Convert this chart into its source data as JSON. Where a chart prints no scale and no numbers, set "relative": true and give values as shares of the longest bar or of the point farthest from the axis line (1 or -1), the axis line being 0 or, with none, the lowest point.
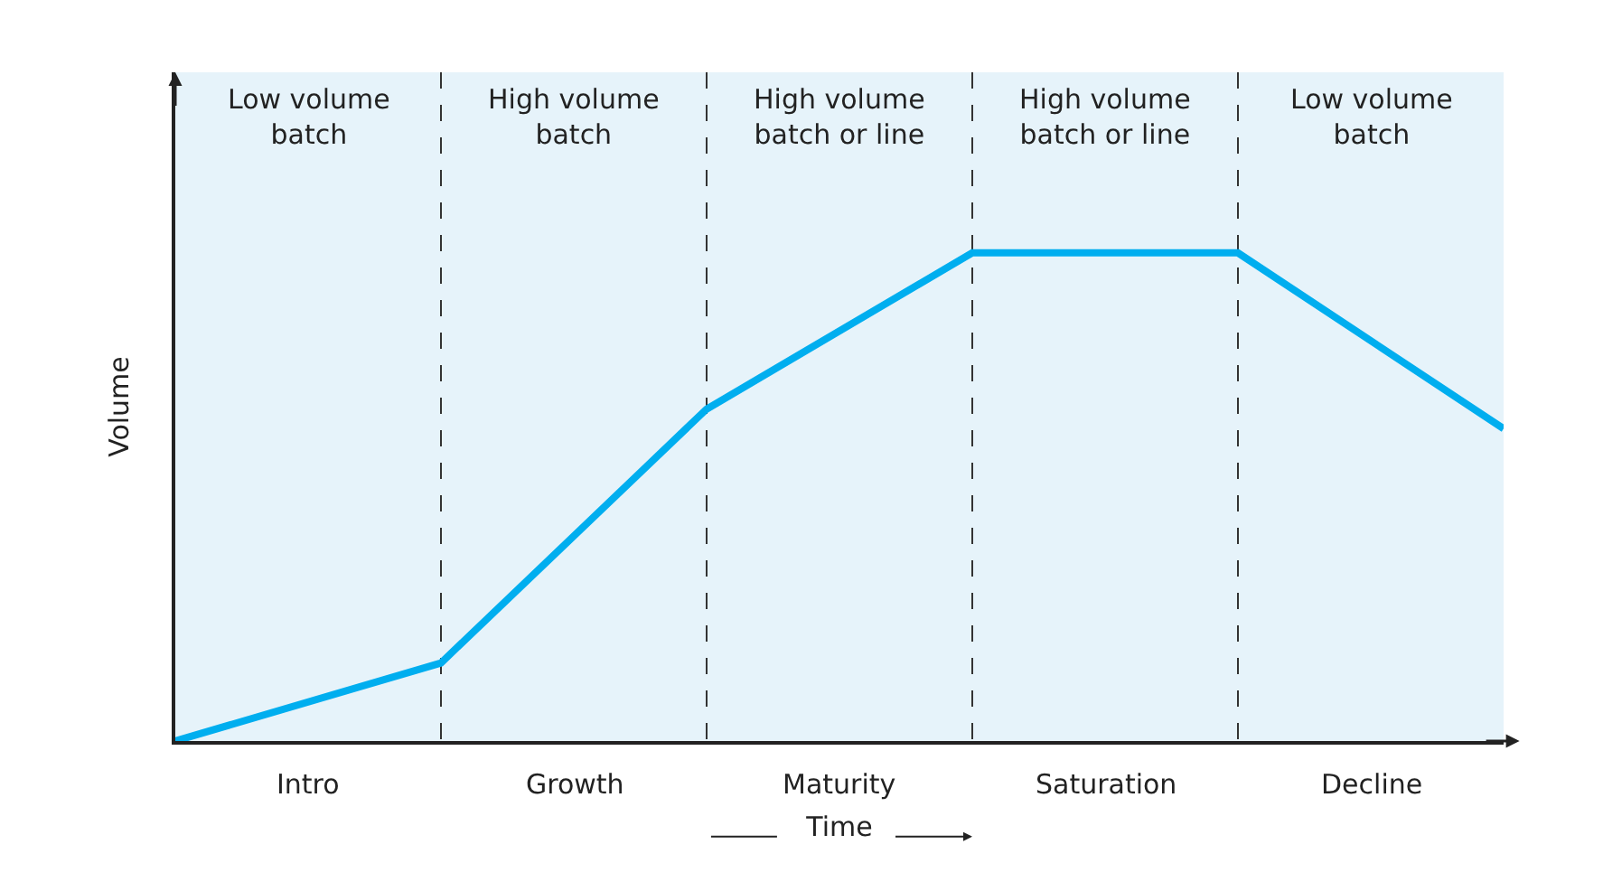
{
  "chart_data": {
    "type": "line",
    "relative": true,
    "ylabel": "Volume",
    "xlabel": "Time",
    "categories": [
      null,
      null,
      null,
      null,
      null,
      null
    ],
    "series": [
      {
        "color": "#00aeef",
        "values": [
          0,
          0.16,
          0.68,
          1,
          1,
          0.64
        ]
      }
    ],
    "annotations": [
      "Low volume\nbatch",
      "High volume\nbatch",
      "High volume\nbatch or line",
      "High volume\nbatch or line",
      "Low volume\nbatch",
      "Intro",
      "Growth",
      "Maturity",
      "Saturation",
      "Decline"
    ],
    "grid": "x",
    "legend": false,
    "marker": "none",
    "line_style": "solid"
  }
}
